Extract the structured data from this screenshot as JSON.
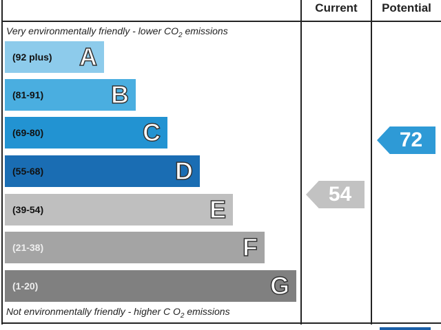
{
  "header": {
    "current": "Current",
    "potential": "Potential"
  },
  "top_note": {
    "text": "Very environmentally friendly - lower C",
    "sub": "2",
    "pre": "O",
    "post": " emissions"
  },
  "bottom_note": {
    "text": "Not environmentally friendly - higher C ",
    "pre": "O",
    "sub": "2",
    "post": " emissions"
  },
  "chart_data": {
    "type": "bar",
    "categories": [
      "A",
      "B",
      "C",
      "D",
      "E",
      "F",
      "G"
    ],
    "ranges": [
      "(92 plus)",
      "(81-91)",
      "(69-80)",
      "(55-68)",
      "(39-54)",
      "(21-38)",
      "(1-20)"
    ],
    "colors": [
      "#8dcbeb",
      "#4aaee0",
      "#2293d2",
      "#1a6db3",
      "#bfbfbf",
      "#a4a4a4",
      "#808080"
    ],
    "current": {
      "value": "54",
      "band": "E",
      "color": "#c2c2c2"
    },
    "potential": {
      "value": "72",
      "band": "C",
      "color": "#2e9ad6"
    }
  }
}
